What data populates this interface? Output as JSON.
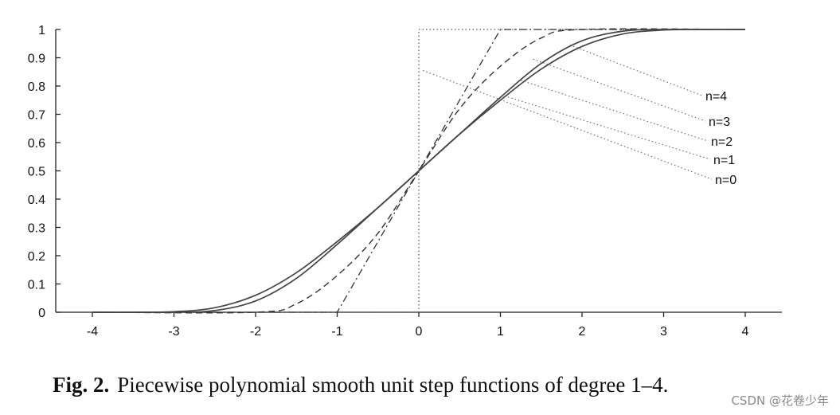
{
  "chart_data": {
    "type": "line",
    "title": "",
    "xlabel": "",
    "ylabel": "",
    "xlim": [
      -4.5,
      4.5
    ],
    "ylim": [
      0,
      1
    ],
    "x_ticks": [
      "-4",
      "-3",
      "-2",
      "-1",
      "0",
      "1",
      "2",
      "3",
      "4"
    ],
    "y_ticks": [
      "0",
      "0.1",
      "0.2",
      "0.3",
      "0.4",
      "0.5",
      "0.6",
      "0.7",
      "0.8",
      "0.9",
      "1"
    ],
    "grid": false,
    "series": [
      {
        "name": "n=0",
        "style": "dotted",
        "color": "#555555",
        "x": [
          -4,
          0,
          0,
          4
        ],
        "y": [
          0,
          0,
          1,
          1
        ]
      },
      {
        "name": "n=1",
        "style": "dashdot",
        "color": "#333333",
        "x": [
          -4,
          -1,
          1,
          4
        ],
        "y": [
          0,
          0,
          1,
          1
        ]
      },
      {
        "name": "n=2",
        "style": "dashed",
        "color": "#333333",
        "x": [
          -4,
          -2,
          -1.5,
          -1,
          -0.5,
          0,
          0.5,
          1,
          1.5,
          2,
          4
        ],
        "y": [
          0,
          0,
          0.03,
          0.13,
          0.28,
          0.5,
          0.72,
          0.87,
          0.97,
          1,
          1
        ]
      },
      {
        "name": "n=3",
        "style": "solid",
        "color": "#444444",
        "x": [
          -4,
          -3,
          -2.5,
          -2,
          -1.5,
          -1,
          -0.5,
          0,
          0.5,
          1,
          1.5,
          2,
          2.5,
          3,
          4
        ],
        "y": [
          0,
          0,
          0.006,
          0.04,
          0.12,
          0.24,
          0.37,
          0.5,
          0.63,
          0.76,
          0.88,
          0.96,
          0.994,
          1,
          1
        ]
      },
      {
        "name": "n=4",
        "style": "solid",
        "color": "#444444",
        "x": [
          -4,
          -3.5,
          -3,
          -2.5,
          -2,
          -1.5,
          -1,
          -0.5,
          0,
          0.5,
          1,
          1.5,
          2,
          2.5,
          3,
          3.5,
          4
        ],
        "y": [
          0,
          0,
          0.002,
          0.016,
          0.06,
          0.14,
          0.25,
          0.37,
          0.5,
          0.63,
          0.75,
          0.86,
          0.94,
          0.984,
          0.998,
          1,
          1
        ]
      }
    ],
    "annotations": [
      {
        "text": "n=4",
        "points_to_x": 1.85,
        "points_to_y": 0.945
      },
      {
        "text": "n=3",
        "points_to_x": 1.4,
        "points_to_y": 0.895
      },
      {
        "text": "n=2",
        "points_to_x": 1.25,
        "points_to_y": 0.82
      },
      {
        "text": "n=1",
        "points_to_x": 1.05,
        "points_to_y": 0.765
      },
      {
        "text": "n=0",
        "points_to_x": 0.05,
        "points_to_y": 0.855
      }
    ]
  },
  "caption": {
    "label": "Fig. 2.",
    "text": "Piecewise polynomial smooth unit step functions of degree 1–4."
  },
  "watermark": "CSDN @花卷少年"
}
